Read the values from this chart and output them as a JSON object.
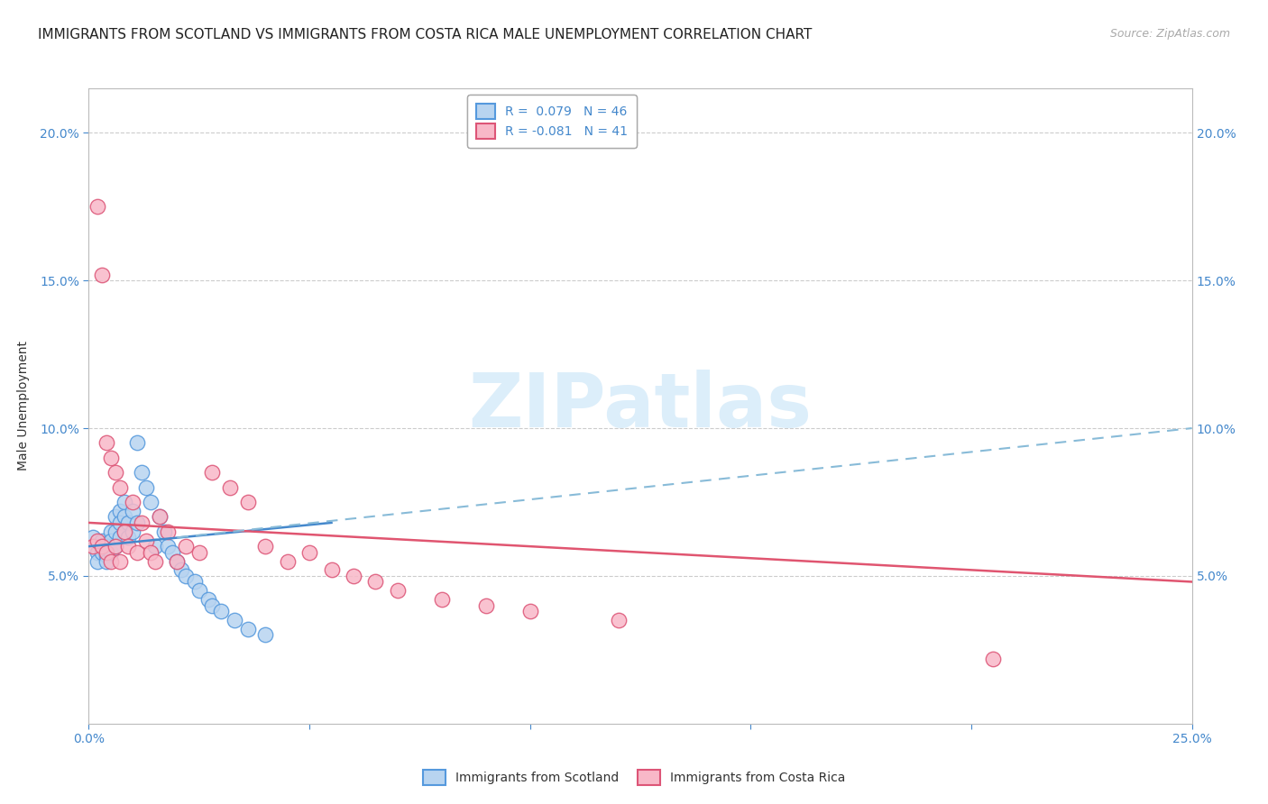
{
  "title": "IMMIGRANTS FROM SCOTLAND VS IMMIGRANTS FROM COSTA RICA MALE UNEMPLOYMENT CORRELATION CHART",
  "source": "Source: ZipAtlas.com",
  "ylabel": "Male Unemployment",
  "legend_entry1": "R =  0.079   N = 46",
  "legend_entry2": "R = -0.081   N = 41",
  "legend_label1": "Immigrants from Scotland",
  "legend_label2": "Immigrants from Costa Rica",
  "color_scotland_fill": "#b8d4f0",
  "color_scotland_edge": "#5599dd",
  "color_costarica_fill": "#f8b8c8",
  "color_costarica_edge": "#dd5577",
  "color_scotland_solid": "#4488cc",
  "color_costarica_solid": "#e05570",
  "color_dashed": "#88bbd8",
  "xlim": [
    0.0,
    0.25
  ],
  "ylim": [
    0.0,
    0.215
  ],
  "ytick_vals": [
    0.05,
    0.1,
    0.15,
    0.2
  ],
  "ytick_labels": [
    "5.0%",
    "10.0%",
    "15.0%",
    "20.0%"
  ],
  "watermark": "ZIPatlas",
  "watermark_color": "#dceefa",
  "background_color": "#ffffff",
  "title_fontsize": 11,
  "axis_label_fontsize": 10,
  "tick_fontsize": 10,
  "legend_fontsize": 10,
  "scotland_x": [
    0.001,
    0.002,
    0.002,
    0.003,
    0.003,
    0.003,
    0.004,
    0.004,
    0.004,
    0.005,
    0.005,
    0.005,
    0.006,
    0.006,
    0.006,
    0.007,
    0.007,
    0.007,
    0.008,
    0.008,
    0.008,
    0.009,
    0.009,
    0.01,
    0.01,
    0.011,
    0.011,
    0.012,
    0.013,
    0.014,
    0.015,
    0.016,
    0.017,
    0.018,
    0.019,
    0.02,
    0.021,
    0.022,
    0.024,
    0.025,
    0.027,
    0.028,
    0.03,
    0.033,
    0.036,
    0.04
  ],
  "scotland_y": [
    0.063,
    0.058,
    0.055,
    0.062,
    0.06,
    0.058,
    0.06,
    0.057,
    0.055,
    0.065,
    0.062,
    0.058,
    0.07,
    0.065,
    0.06,
    0.072,
    0.068,
    0.063,
    0.075,
    0.07,
    0.065,
    0.068,
    0.063,
    0.072,
    0.065,
    0.095,
    0.068,
    0.085,
    0.08,
    0.075,
    0.06,
    0.07,
    0.065,
    0.06,
    0.058,
    0.055,
    0.052,
    0.05,
    0.048,
    0.045,
    0.042,
    0.04,
    0.038,
    0.035,
    0.032,
    0.03
  ],
  "costarica_x": [
    0.001,
    0.002,
    0.002,
    0.003,
    0.003,
    0.004,
    0.004,
    0.005,
    0.005,
    0.006,
    0.006,
    0.007,
    0.007,
    0.008,
    0.009,
    0.01,
    0.011,
    0.012,
    0.013,
    0.014,
    0.015,
    0.016,
    0.018,
    0.02,
    0.022,
    0.025,
    0.028,
    0.032,
    0.036,
    0.04,
    0.045,
    0.05,
    0.055,
    0.06,
    0.065,
    0.07,
    0.08,
    0.09,
    0.1,
    0.12,
    0.205
  ],
  "costarica_y": [
    0.06,
    0.175,
    0.062,
    0.152,
    0.06,
    0.095,
    0.058,
    0.09,
    0.055,
    0.085,
    0.06,
    0.08,
    0.055,
    0.065,
    0.06,
    0.075,
    0.058,
    0.068,
    0.062,
    0.058,
    0.055,
    0.07,
    0.065,
    0.055,
    0.06,
    0.058,
    0.085,
    0.08,
    0.075,
    0.06,
    0.055,
    0.058,
    0.052,
    0.05,
    0.048,
    0.045,
    0.042,
    0.04,
    0.038,
    0.035,
    0.022
  ],
  "scotland_line_x": [
    0.0,
    0.055
  ],
  "scotland_line_y": [
    0.06,
    0.068
  ],
  "costarica_line_x": [
    0.0,
    0.25
  ],
  "costarica_line_y": [
    0.068,
    0.048
  ],
  "dashed_line_x": [
    0.02,
    0.25
  ],
  "dashed_line_y": [
    0.063,
    0.1
  ]
}
